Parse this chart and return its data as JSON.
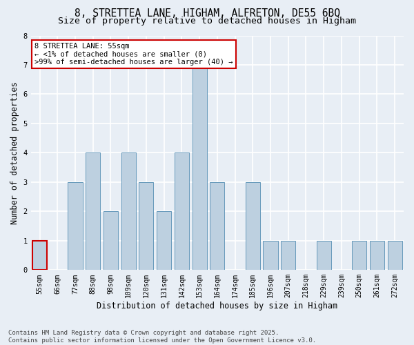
{
  "title1": "8, STRETTEA LANE, HIGHAM, ALFRETON, DE55 6BQ",
  "title2": "Size of property relative to detached houses in Higham",
  "xlabel": "Distribution of detached houses by size in Higham",
  "ylabel": "Number of detached properties",
  "categories": [
    "55sqm",
    "66sqm",
    "77sqm",
    "88sqm",
    "98sqm",
    "109sqm",
    "120sqm",
    "131sqm",
    "142sqm",
    "153sqm",
    "164sqm",
    "174sqm",
    "185sqm",
    "196sqm",
    "207sqm",
    "218sqm",
    "229sqm",
    "239sqm",
    "250sqm",
    "261sqm",
    "272sqm"
  ],
  "values": [
    1,
    0,
    3,
    4,
    2,
    4,
    3,
    2,
    4,
    7,
    3,
    0,
    3,
    1,
    1,
    0,
    1,
    0,
    1,
    1,
    1
  ],
  "highlight_index": 0,
  "bar_color": "#bdd0e0",
  "bar_edge_color": "#6699bb",
  "highlight_bar_edge_color": "#cc0000",
  "annotation_box_bg": "#ffffff",
  "annotation_border_color": "#cc0000",
  "annotation_text_line1": "8 STRETTEA LANE: 55sqm",
  "annotation_text_line2": "← <1% of detached houses are smaller (0)",
  "annotation_text_line3": ">99% of semi-detached houses are larger (40) →",
  "ylim": [
    0,
    8
  ],
  "yticks": [
    0,
    1,
    2,
    3,
    4,
    5,
    6,
    7,
    8
  ],
  "footer_line1": "Contains HM Land Registry data © Crown copyright and database right 2025.",
  "footer_line2": "Contains public sector information licensed under the Open Government Licence v3.0.",
  "fig_bg_color": "#e8eef5",
  "plot_bg_color": "#e8eef5",
  "grid_color": "#ffffff",
  "title_fontsize": 10.5,
  "subtitle_fontsize": 9.5,
  "axis_label_fontsize": 8.5,
  "tick_fontsize": 7,
  "annotation_fontsize": 7.5,
  "footer_fontsize": 6.5
}
